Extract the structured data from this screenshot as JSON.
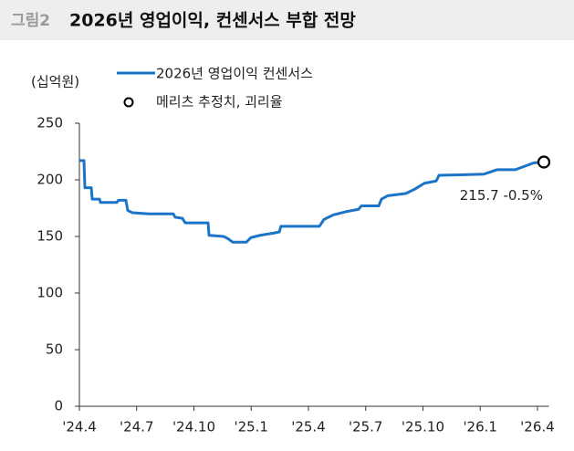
{
  "chart_data": {
    "type": "line",
    "figure_label": "그림2",
    "title": "2026년 영업이익, 컨센서스 부합 전망",
    "unit_label": "(십억원)",
    "xlim": [
      2024.25,
      2026.3
    ],
    "xticks": [
      {
        "value": 2024.25,
        "label": "'24.4"
      },
      {
        "value": 2024.5,
        "label": "'24.7"
      },
      {
        "value": 2024.75,
        "label": "'24.10"
      },
      {
        "value": 2025.0,
        "label": "'25.1"
      },
      {
        "value": 2025.25,
        "label": "'25.4"
      },
      {
        "value": 2025.5,
        "label": "'25.7"
      },
      {
        "value": 2025.75,
        "label": "'25.10"
      },
      {
        "value": 2026.0,
        "label": "'26.1"
      },
      {
        "value": 2026.25,
        "label": "'26.4"
      }
    ],
    "ylim": [
      0,
      250
    ],
    "yticks": [
      0,
      50,
      100,
      150,
      200,
      250
    ],
    "series": [
      {
        "name": "2026년 영업이익 컨센서스",
        "color": "#1b74c8",
        "type": "line",
        "x": [
          2024.25,
          2024.27,
          2024.274,
          2024.302,
          2024.306,
          2024.338,
          2024.342,
          2024.413,
          2024.421,
          2024.453,
          2024.461,
          2024.481,
          2024.553,
          2024.66,
          2024.668,
          2024.7,
          2024.712,
          2024.812,
          2024.816,
          2024.88,
          2024.899,
          2024.919,
          2024.979,
          2024.999,
          2025.039,
          2025.099,
          2025.123,
          2025.13,
          2025.298,
          2025.318,
          2025.358,
          2025.417,
          2025.469,
          2025.481,
          2025.557,
          2025.569,
          2025.597,
          2025.676,
          2025.716,
          2025.756,
          2025.808,
          2025.82,
          2026.015,
          2026.075,
          2026.154,
          2026.194,
          2026.234,
          2026.278
        ],
        "values": [
          217,
          217,
          193,
          193,
          183,
          183,
          180,
          180,
          182,
          182,
          173,
          171,
          170,
          170,
          167,
          166,
          162,
          162,
          151,
          150,
          148,
          145,
          145,
          149,
          151,
          153,
          154,
          159,
          159,
          165,
          169,
          172,
          174,
          177,
          177,
          183,
          186,
          188,
          192,
          197,
          199,
          204,
          205,
          209,
          209,
          212,
          215,
          215.7
        ]
      },
      {
        "name": "메리츠 추정치, 괴리율",
        "color": "#000000",
        "type": "scatter",
        "x": [
          2026.278
        ],
        "values": [
          215.7
        ]
      }
    ],
    "annotations": [
      {
        "text": "215.7 -0.5%"
      }
    ]
  }
}
